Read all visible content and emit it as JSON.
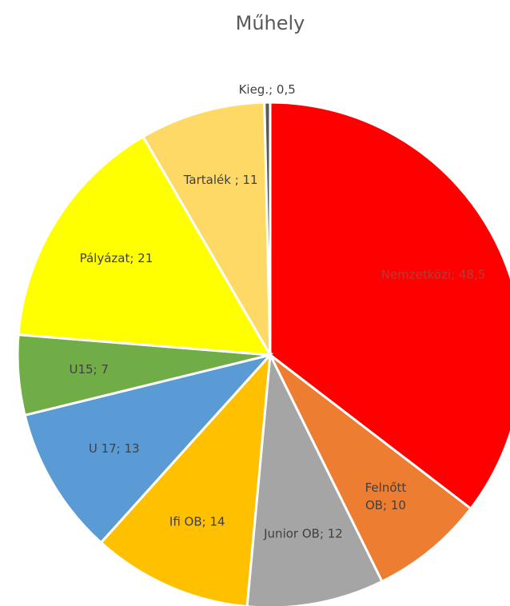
{
  "chart_data": {
    "type": "pie",
    "title": "Műhely",
    "labels": [
      [
        "Nemzetközi; 48,5"
      ],
      [
        "Felnőtt",
        "OB; 10"
      ],
      [
        "Junior OB; 12"
      ],
      [
        "Ifi OB; 14"
      ],
      [
        "U 17; 13"
      ],
      [
        "U15; 7"
      ],
      [
        "Pályázat; 21"
      ],
      [
        "Tartalék ; 11"
      ],
      [
        "Kieg.; 0,5"
      ]
    ],
    "values": [
      48.5,
      10,
      12,
      14,
      13,
      7,
      21,
      11,
      0.5
    ],
    "colors": [
      "#ff0000",
      "#ed7d31",
      "#a5a5a5",
      "#ffc000",
      "#5b9bd5",
      "#70ad47",
      "#ffff00",
      "#ffd966",
      "#595959"
    ]
  }
}
